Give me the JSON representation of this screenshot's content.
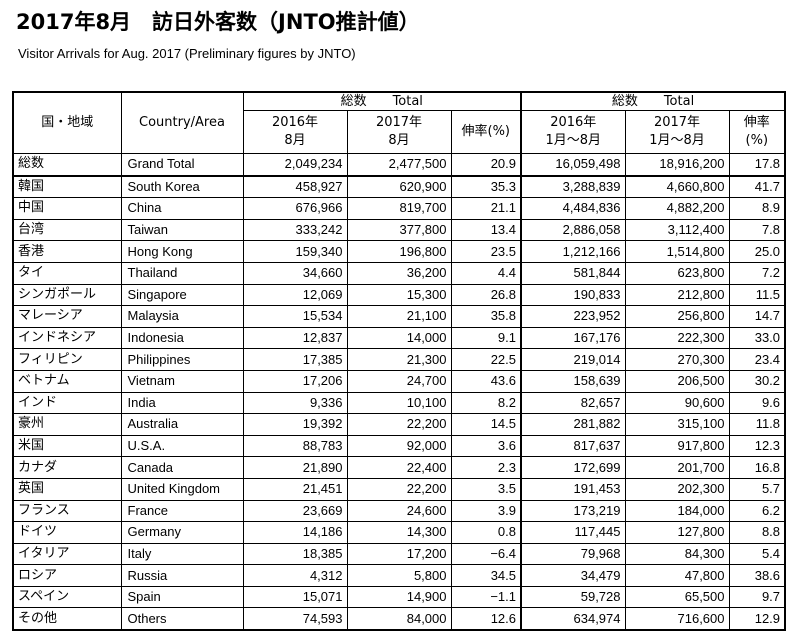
{
  "header": {
    "title": "2017年8月　訪日外客数（JNTO推計値）",
    "subtitle": "Visitor Arrivals for Aug. 2017 (Preliminary figures by JNTO)"
  },
  "table": {
    "col_region_jp": "国・地域",
    "col_region_en": "Country/Area",
    "group_month": "総数　　Total",
    "group_ytd": "総数　　Total",
    "month_2016": [
      "2016年",
      "8月"
    ],
    "month_2017": [
      "2017年",
      "8月"
    ],
    "growth_month": "伸率(%)",
    "ytd_2016": [
      "2016年",
      "1月～8月"
    ],
    "ytd_2017": [
      "2017年",
      "1月～8月"
    ],
    "growth_ytd": "伸率(%)",
    "rows": [
      [
        "総数",
        "Grand Total",
        "2,049,234",
        "2,477,500",
        "20.9",
        "16,059,498",
        "18,916,200",
        "17.8"
      ],
      [
        "韓国",
        "South Korea",
        "458,927",
        "620,900",
        "35.3",
        "3,288,839",
        "4,660,800",
        "41.7"
      ],
      [
        "中国",
        "China",
        "676,966",
        "819,700",
        "21.1",
        "4,484,836",
        "4,882,200",
        "8.9"
      ],
      [
        "台湾",
        "Taiwan",
        "333,242",
        "377,800",
        "13.4",
        "2,886,058",
        "3,112,400",
        "7.8"
      ],
      [
        "香港",
        "Hong Kong",
        "159,340",
        "196,800",
        "23.5",
        "1,212,166",
        "1,514,800",
        "25.0"
      ],
      [
        "タイ",
        "Thailand",
        "34,660",
        "36,200",
        "4.4",
        "581,844",
        "623,800",
        "7.2"
      ],
      [
        "シンガポール",
        "Singapore",
        "12,069",
        "15,300",
        "26.8",
        "190,833",
        "212,800",
        "11.5"
      ],
      [
        "マレーシア",
        "Malaysia",
        "15,534",
        "21,100",
        "35.8",
        "223,952",
        "256,800",
        "14.7"
      ],
      [
        "インドネシア",
        "Indonesia",
        "12,837",
        "14,000",
        "9.1",
        "167,176",
        "222,300",
        "33.0"
      ],
      [
        "フィリピン",
        "Philippines",
        "17,385",
        "21,300",
        "22.5",
        "219,014",
        "270,300",
        "23.4"
      ],
      [
        "ベトナム",
        "Vietnam",
        "17,206",
        "24,700",
        "43.6",
        "158,639",
        "206,500",
        "30.2"
      ],
      [
        "インド",
        "India",
        "9,336",
        "10,100",
        "8.2",
        "82,657",
        "90,600",
        "9.6"
      ],
      [
        "豪州",
        "Australia",
        "19,392",
        "22,200",
        "14.5",
        "281,882",
        "315,100",
        "11.8"
      ],
      [
        "米国",
        "U.S.A.",
        "88,783",
        "92,000",
        "3.6",
        "817,637",
        "917,800",
        "12.3"
      ],
      [
        "カナダ",
        "Canada",
        "21,890",
        "22,400",
        "2.3",
        "172,699",
        "201,700",
        "16.8"
      ],
      [
        "英国",
        "United Kingdom",
        "21,451",
        "22,200",
        "3.5",
        "191,453",
        "202,300",
        "5.7"
      ],
      [
        "フランス",
        "France",
        "23,669",
        "24,600",
        "3.9",
        "173,219",
        "184,000",
        "6.2"
      ],
      [
        "ドイツ",
        "Germany",
        "14,186",
        "14,300",
        "0.8",
        "117,445",
        "127,800",
        "8.8"
      ],
      [
        "イタリア",
        "Italy",
        "18,385",
        "17,200",
        "−6.4",
        "79,968",
        "84,300",
        "5.4"
      ],
      [
        "ロシア",
        "Russia",
        "4,312",
        "5,800",
        "34.5",
        "34,479",
        "47,800",
        "38.6"
      ],
      [
        "スペイン",
        "Spain",
        "15,071",
        "14,900",
        "−1.1",
        "59,728",
        "65,500",
        "9.7"
      ],
      [
        "その他",
        "Others",
        "74,593",
        "84,000",
        "12.6",
        "634,974",
        "716,600",
        "12.9"
      ]
    ]
  }
}
